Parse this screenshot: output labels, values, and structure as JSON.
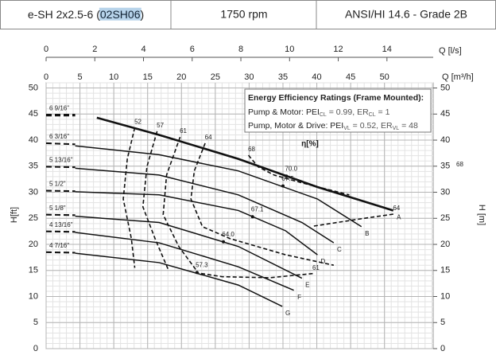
{
  "header": {
    "model": [
      "e-SH 2x2.5-6 (",
      "02SH06",
      ")"
    ],
    "speed": "1750 rpm",
    "standard": "ANSI/HI 14.6 - Grade 2B"
  },
  "chart_data": {
    "type": "pump_curve",
    "x_label": "Q [m³/h]",
    "x2_label": "Q [l/s]",
    "y_label": "H[ft]",
    "y2_label": "H [m]",
    "xlim": [
      0,
      57.2
    ],
    "xticks": [
      0,
      5,
      10,
      15,
      20,
      25,
      30,
      35,
      40,
      45,
      50
    ],
    "x2lim": [
      0,
      15.9
    ],
    "x2ticks": [
      0,
      2,
      4,
      6,
      8,
      10,
      12,
      14
    ],
    "ylim": [
      0,
      51
    ],
    "yticks": [
      0,
      5,
      10,
      15,
      20,
      25,
      30,
      35,
      40,
      45,
      50
    ],
    "y2lim": [
      0,
      51
    ],
    "y2ticks": [
      0,
      5,
      10,
      15,
      20,
      25,
      30,
      35,
      40,
      45,
      50
    ],
    "grid": true,
    "minor_grid": {
      "x": 1,
      "y": 1
    },
    "efficiency_label": "η[%]",
    "right_note": "68",
    "energy_box": {
      "title": "Energy Efficiency Ratings (Frame Mounted):",
      "lines": [
        [
          "Pump & Motor: PEI",
          "CL",
          " = 0.99, ER",
          "CL",
          " = 1"
        ],
        [
          "Pump, Motor & Drive: PEI",
          "VL",
          " = 0.52, ER",
          "VL",
          " = 48"
        ]
      ]
    },
    "series": [
      {
        "name": "6 9/16\"",
        "end_label": "A",
        "dashed_x": [
          0,
          4.3
        ],
        "dashed_values": [
          44.8,
          44.8
        ],
        "x": [
          7.5,
          16.7,
          28.4,
          40.1,
          51.3
        ],
        "values": [
          44.3,
          41.0,
          36.4,
          31.0,
          26.5
        ]
      },
      {
        "name": "6 3/16\"",
        "end_label": "B",
        "dashed_x": [
          0,
          4.3
        ],
        "dashed_values": [
          39.4,
          39.2
        ],
        "x": [
          4.3,
          16.7,
          28.4,
          40.1,
          46.6
        ],
        "values": [
          38.9,
          37.2,
          34.1,
          28.7,
          23.4
        ]
      },
      {
        "name": "5 13/16\"",
        "end_label": "C",
        "dashed_x": [
          0,
          4.3
        ],
        "dashed_values": [
          34.9,
          34.8
        ],
        "x": [
          4.3,
          16.7,
          28.4,
          37.8,
          42.5
        ],
        "values": [
          34.6,
          33.3,
          29.5,
          24.2,
          20.3
        ]
      },
      {
        "name": "5 1/2\"",
        "end_label": "D",
        "dashed_x": [
          0,
          4.3
        ],
        "dashed_values": [
          30.3,
          30.2
        ],
        "x": [
          4.3,
          16.7,
          28.4,
          35.4,
          40.1
        ],
        "values": [
          30.1,
          29.5,
          26.5,
          22.6,
          18.0
        ]
      },
      {
        "name": "5 1/8\"",
        "end_label": "E",
        "dashed_x": [
          0,
          4.3
        ],
        "dashed_values": [
          25.7,
          25.6
        ],
        "x": [
          4.3,
          16.7,
          28.4,
          37.8
        ],
        "values": [
          25.4,
          24.2,
          19.6,
          13.5
        ]
      },
      {
        "name": "4 13/16\"",
        "end_label": "F",
        "dashed_x": [
          0,
          4.3
        ],
        "dashed_values": [
          22.5,
          22.4
        ],
        "x": [
          4.3,
          16.7,
          28.4,
          36.6
        ],
        "values": [
          22.3,
          20.3,
          15.7,
          11.2
        ]
      },
      {
        "name": "4 7/16\"",
        "end_label": "G",
        "dashed_x": [
          0,
          4.3
        ],
        "dashed_values": [
          18.5,
          18.4
        ],
        "x": [
          4.3,
          16.7,
          28.4,
          34.9
        ],
        "values": [
          18.3,
          16.5,
          12.2,
          8.1
        ]
      }
    ],
    "efficiency_contours": [
      {
        "label": "52",
        "x": [
          13.1,
          12.0,
          11.4,
          12.6,
          13.1
        ],
        "values": [
          42.4,
          36.4,
          28.7,
          21.1,
          15.5
        ]
      },
      {
        "label": "57",
        "x": [
          16.4,
          14.9,
          14.3,
          16.1,
          18.1
        ],
        "values": [
          41.7,
          34.9,
          27.2,
          21.1,
          15.0
        ]
      },
      {
        "label": "61",
        "x": [
          19.8,
          17.8,
          17.3,
          19.6,
          22.5
        ],
        "values": [
          40.6,
          33.3,
          25.7,
          19.6,
          14.5
        ]
      },
      {
        "label": "64",
        "x": [
          23.5,
          21.9,
          21.4,
          23.1,
          27.2,
          35.4,
          42.5
        ],
        "values": [
          39.4,
          34.1,
          28.7,
          23.4,
          21.1,
          18.0,
          16.0
        ]
      },
      {
        "label": "68",
        "x": [
          29.9,
          31.3,
          33.7,
          37.8,
          44.8
        ],
        "values": [
          37.1,
          34.9,
          33.3,
          31.8,
          29.5
        ]
      },
      {
        "label": "64",
        "x": [
          51.3,
          47,
          43,
          39.5
        ],
        "values": [
          25.8,
          25.0,
          24.2,
          23.5
        ]
      },
      {
        "label": "61",
        "x": [
          39.4,
          33,
          26,
          22.5
        ],
        "values": [
          14.4,
          13.6,
          13.8,
          14.5
        ]
      }
    ],
    "bep_points": [
      {
        "label": "70.0",
        "x": 35.5,
        "value": 33.1
      },
      {
        "label": "67.5",
        "x": 35.0,
        "value": 31.2
      },
      {
        "label": "67.1",
        "x": 30.5,
        "value": 25.3
      },
      {
        "label": "64.0",
        "x": 26.2,
        "value": 20.5
      },
      {
        "label": "57.3",
        "x": 22.3,
        "value": 14.6
      }
    ]
  }
}
